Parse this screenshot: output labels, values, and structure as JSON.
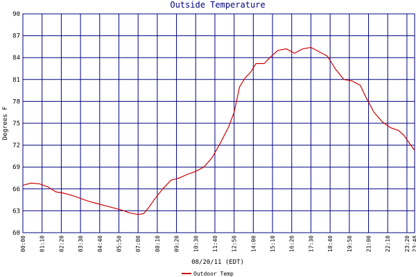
{
  "chart_data": {
    "type": "line",
    "title": "Outside Temperature",
    "y_label": "Degrees F",
    "x_label": "08/20/11 (EDT)",
    "x": [
      0,
      30,
      60,
      90,
      120,
      150,
      180,
      210,
      240,
      270,
      300,
      330,
      360,
      390,
      420,
      440,
      460,
      480,
      510,
      540,
      570,
      600,
      630,
      660,
      690,
      720,
      750,
      770,
      790,
      810,
      830,
      850,
      880,
      900,
      930,
      960,
      990,
      1020,
      1050,
      1080,
      1110,
      1140,
      1170,
      1200,
      1230,
      1250,
      1280,
      1310,
      1340,
      1370,
      1390,
      1410,
      1428
    ],
    "series": [
      {
        "name": "Outdoor Temp",
        "color": "#cc0000",
        "values": [
          66.5,
          66.8,
          66.7,
          66.3,
          65.6,
          65.4,
          65.1,
          64.7,
          64.3,
          64.0,
          63.7,
          63.4,
          63.1,
          62.7,
          62.5,
          62.6,
          63.5,
          64.6,
          66.0,
          67.2,
          67.5,
          68.0,
          68.4,
          69.0,
          70.3,
          72.3,
          74.5,
          76.5,
          80.0,
          81.2,
          82.0,
          83.2,
          83.2,
          84.0,
          85.0,
          85.2,
          84.6,
          85.2,
          85.4,
          84.8,
          84.2,
          82.4,
          81.0,
          80.8,
          80.2,
          78.6,
          76.5,
          75.2,
          74.4,
          74.0,
          73.3,
          72.2,
          71.3
        ]
      }
    ],
    "xlim": [
      0,
      1428
    ],
    "xticks": [
      {
        "value": 0,
        "label": "00:00"
      },
      {
        "value": 70,
        "label": "01:10"
      },
      {
        "value": 140,
        "label": "02:20"
      },
      {
        "value": 210,
        "label": "03:30"
      },
      {
        "value": 280,
        "label": "04:40"
      },
      {
        "value": 350,
        "label": "05:50"
      },
      {
        "value": 420,
        "label": "07:00"
      },
      {
        "value": 490,
        "label": "08:10"
      },
      {
        "value": 560,
        "label": "09:20"
      },
      {
        "value": 630,
        "label": "10:30"
      },
      {
        "value": 700,
        "label": "11:40"
      },
      {
        "value": 770,
        "label": "12:50"
      },
      {
        "value": 840,
        "label": "14:00"
      },
      {
        "value": 910,
        "label": "15:10"
      },
      {
        "value": 980,
        "label": "16:20"
      },
      {
        "value": 1050,
        "label": "17:30"
      },
      {
        "value": 1120,
        "label": "18:40"
      },
      {
        "value": 1190,
        "label": "19:50"
      },
      {
        "value": 1260,
        "label": "21:00"
      },
      {
        "value": 1330,
        "label": "22:10"
      },
      {
        "value": 1400,
        "label": "23:20"
      },
      {
        "value": 1428,
        "label": "23:48"
      }
    ],
    "ylim": [
      60,
      90
    ],
    "yticks": [
      60,
      63,
      66,
      69,
      72,
      75,
      78,
      81,
      84,
      87,
      90
    ],
    "grid": true,
    "grid_color": "#000080"
  }
}
